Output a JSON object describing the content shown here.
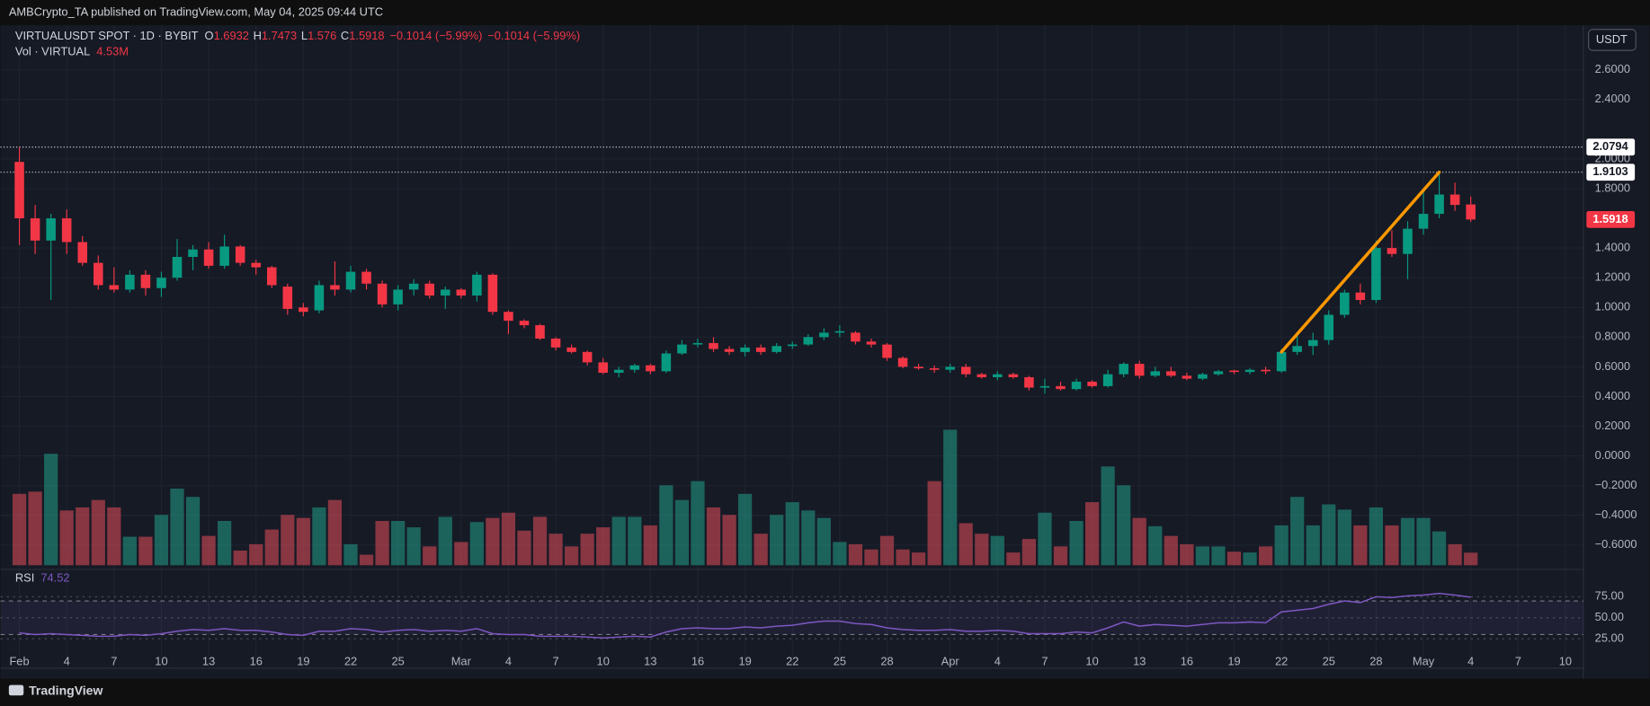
{
  "header": {
    "published": "AMBCrypto_TA published on TradingView.com, May 04, 2025 09:44 UTC",
    "logo": "TradingView"
  },
  "chart_data": {
    "type": "candlestick",
    "symbol": "VIRTUALUSDT SPOT · 1D · BYBIT",
    "currency": "USDT",
    "ohlc_keys": [
      "O",
      "H",
      "L",
      "C"
    ],
    "change": "−0.1014 (−5.99%)",
    "volume_title": "Vol · VIRTUAL",
    "volume_label": "4.53M",
    "up_color": "#089981",
    "down_color": "#f23645",
    "volume_up_color": "rgba(34,171,148,0.5)",
    "volume_down_color": "rgba(247,82,95,0.5)",
    "categories": [
      "2025-02-01",
      "2025-02-02",
      "2025-02-03",
      "2025-02-04",
      "2025-02-05",
      "2025-02-06",
      "2025-02-07",
      "2025-02-08",
      "2025-02-09",
      "2025-02-10",
      "2025-02-11",
      "2025-02-12",
      "2025-02-13",
      "2025-02-14",
      "2025-02-15",
      "2025-02-16",
      "2025-02-17",
      "2025-02-18",
      "2025-02-19",
      "2025-02-20",
      "2025-02-21",
      "2025-02-22",
      "2025-02-23",
      "2025-02-24",
      "2025-02-25",
      "2025-02-26",
      "2025-02-27",
      "2025-02-28",
      "2025-03-01",
      "2025-03-02",
      "2025-03-03",
      "2025-03-04",
      "2025-03-05",
      "2025-03-06",
      "2025-03-07",
      "2025-03-08",
      "2025-03-09",
      "2025-03-10",
      "2025-03-11",
      "2025-03-12",
      "2025-03-13",
      "2025-03-14",
      "2025-03-15",
      "2025-03-16",
      "2025-03-17",
      "2025-03-18",
      "2025-03-19",
      "2025-03-20",
      "2025-03-21",
      "2025-03-22",
      "2025-03-23",
      "2025-03-24",
      "2025-03-25",
      "2025-03-26",
      "2025-03-27",
      "2025-03-28",
      "2025-03-29",
      "2025-03-30",
      "2025-03-31",
      "2025-04-01",
      "2025-04-02",
      "2025-04-03",
      "2025-04-04",
      "2025-04-05",
      "2025-04-06",
      "2025-04-07",
      "2025-04-08",
      "2025-04-09",
      "2025-04-10",
      "2025-04-11",
      "2025-04-12",
      "2025-04-13",
      "2025-04-14",
      "2025-04-15",
      "2025-04-16",
      "2025-04-17",
      "2025-04-18",
      "2025-04-19",
      "2025-04-20",
      "2025-04-21",
      "2025-04-22",
      "2025-04-23",
      "2025-04-24",
      "2025-04-25",
      "2025-04-26",
      "2025-04-27",
      "2025-04-28",
      "2025-04-29",
      "2025-04-30",
      "2025-05-01",
      "2025-05-02",
      "2025-05-03",
      "2025-05-04"
    ],
    "open": [
      1.98,
      1.6,
      1.45,
      1.6,
      1.44,
      1.3,
      1.15,
      1.12,
      1.22,
      1.13,
      1.2,
      1.34,
      1.39,
      1.28,
      1.41,
      1.3,
      1.27,
      1.14,
      1.0,
      0.98,
      1.15,
      1.12,
      1.24,
      1.16,
      1.02,
      1.12,
      1.16,
      1.08,
      1.12,
      1.08,
      1.22,
      0.97,
      0.91,
      0.88,
      0.79,
      0.73,
      0.7,
      0.63,
      0.56,
      0.58,
      0.61,
      0.57,
      0.69,
      0.75,
      0.76,
      0.72,
      0.7,
      0.73,
      0.7,
      0.74,
      0.75,
      0.8,
      0.83,
      0.83,
      0.77,
      0.75,
      0.66,
      0.6,
      0.59,
      0.58,
      0.6,
      0.55,
      0.53,
      0.55,
      0.53,
      0.46,
      0.47,
      0.45,
      0.5,
      0.47,
      0.55,
      0.62,
      0.54,
      0.57,
      0.54,
      0.52,
      0.55,
      0.575,
      0.565,
      0.58,
      0.57,
      0.7,
      0.74,
      0.78,
      0.95,
      1.1,
      1.05,
      1.4,
      1.36,
      1.53,
      1.63,
      1.76,
      1.6932
    ],
    "high": [
      2.08,
      1.69,
      1.63,
      1.66,
      1.48,
      1.35,
      1.27,
      1.25,
      1.25,
      1.24,
      1.46,
      1.42,
      1.44,
      1.49,
      1.42,
      1.32,
      1.28,
      1.16,
      1.03,
      1.18,
      1.31,
      1.28,
      1.26,
      1.18,
      1.15,
      1.19,
      1.18,
      1.14,
      1.13,
      1.24,
      1.23,
      0.98,
      0.92,
      0.89,
      0.8,
      0.75,
      0.71,
      0.66,
      0.6,
      0.62,
      0.62,
      0.71,
      0.78,
      0.79,
      0.8,
      0.74,
      0.75,
      0.75,
      0.76,
      0.77,
      0.82,
      0.86,
      0.88,
      0.84,
      0.79,
      0.76,
      0.67,
      0.62,
      0.61,
      0.62,
      0.62,
      0.56,
      0.57,
      0.56,
      0.54,
      0.52,
      0.5,
      0.52,
      0.51,
      0.58,
      0.63,
      0.64,
      0.6,
      0.6,
      0.56,
      0.56,
      0.58,
      0.58,
      0.59,
      0.6,
      0.72,
      0.82,
      0.83,
      0.98,
      1.12,
      1.16,
      1.45,
      1.52,
      1.58,
      1.79,
      1.91,
      1.84,
      1.7473
    ],
    "low": [
      1.42,
      1.36,
      1.05,
      1.36,
      1.28,
      1.12,
      1.1,
      1.1,
      1.08,
      1.07,
      1.18,
      1.25,
      1.26,
      1.26,
      1.28,
      1.22,
      1.13,
      0.95,
      0.94,
      0.96,
      1.08,
      1.1,
      1.12,
      1.0,
      0.98,
      1.08,
      1.06,
      0.99,
      1.06,
      1.04,
      0.95,
      0.82,
      0.86,
      0.78,
      0.71,
      0.69,
      0.61,
      0.55,
      0.53,
      0.56,
      0.55,
      0.56,
      0.68,
      0.73,
      0.7,
      0.68,
      0.67,
      0.68,
      0.69,
      0.72,
      0.74,
      0.78,
      0.8,
      0.75,
      0.73,
      0.64,
      0.59,
      0.58,
      0.56,
      0.56,
      0.53,
      0.52,
      0.51,
      0.52,
      0.44,
      0.42,
      0.44,
      0.44,
      0.46,
      0.46,
      0.53,
      0.52,
      0.53,
      0.53,
      0.51,
      0.51,
      0.54,
      0.55,
      0.55,
      0.55,
      0.56,
      0.68,
      0.68,
      0.75,
      0.93,
      1.02,
      1.03,
      1.34,
      1.19,
      1.49,
      1.6,
      1.65,
      1.576
    ],
    "close": [
      1.6,
      1.45,
      1.6,
      1.44,
      1.3,
      1.15,
      1.12,
      1.22,
      1.13,
      1.2,
      1.34,
      1.39,
      1.28,
      1.41,
      1.3,
      1.27,
      1.15,
      0.99,
      0.97,
      1.15,
      1.12,
      1.24,
      1.16,
      1.02,
      1.12,
      1.16,
      1.08,
      1.12,
      1.08,
      1.22,
      0.97,
      0.91,
      0.88,
      0.79,
      0.73,
      0.7,
      0.63,
      0.56,
      0.58,
      0.61,
      0.57,
      0.69,
      0.75,
      0.76,
      0.72,
      0.7,
      0.73,
      0.7,
      0.74,
      0.75,
      0.8,
      0.83,
      0.84,
      0.77,
      0.75,
      0.66,
      0.6,
      0.59,
      0.58,
      0.6,
      0.55,
      0.53,
      0.55,
      0.53,
      0.46,
      0.47,
      0.45,
      0.5,
      0.47,
      0.55,
      0.62,
      0.54,
      0.57,
      0.54,
      0.52,
      0.55,
      0.57,
      0.565,
      0.58,
      0.57,
      0.7,
      0.74,
      0.78,
      0.95,
      1.1,
      1.05,
      1.4,
      1.36,
      1.53,
      1.63,
      1.76,
      1.69,
      1.5918
    ],
    "volume": [
      25.8,
      26.6,
      40.3,
      19.8,
      20.9,
      23.6,
      20.9,
      10.3,
      10.3,
      18.2,
      27.7,
      24.7,
      10.6,
      16.0,
      5.3,
      7.6,
      12.9,
      18.2,
      17.1,
      20.9,
      23.6,
      7.6,
      3.8,
      16.0,
      16.0,
      13.7,
      6.8,
      17.5,
      8.4,
      15.6,
      17.1,
      19.0,
      12.5,
      17.5,
      11.4,
      6.8,
      11.4,
      13.7,
      17.5,
      17.5,
      14.4,
      28.9,
      23.6,
      30.4,
      20.9,
      18.2,
      25.8,
      11.4,
      18.2,
      22.8,
      19.8,
      17.1,
      8.4,
      7.6,
      5.7,
      10.6,
      5.7,
      4.6,
      30.4,
      49.0,
      15.2,
      11.4,
      10.6,
      4.6,
      9.5,
      19.0,
      6.8,
      16.0,
      22.8,
      35.7,
      28.9,
      17.1,
      14.1,
      10.6,
      7.6,
      6.8,
      6.8,
      4.9,
      4.6,
      6.8,
      14.4,
      24.7,
      14.4,
      22.0,
      20.1,
      14.4,
      20.9,
      14.4,
      17.1,
      17.1,
      12.2,
      7.6,
      4.53
    ],
    "ylim": [
      -0.75,
      2.9
    ],
    "yticks": [
      {
        "value": 2.6,
        "label": "2.6000"
      },
      {
        "value": 2.4,
        "label": "2.4000"
      },
      {
        "value": 2.0,
        "label": "2.0000"
      },
      {
        "value": 1.8,
        "label": "1.8000"
      },
      {
        "value": 1.4,
        "label": "1.4000"
      },
      {
        "value": 1.2,
        "label": "1.2000"
      },
      {
        "value": 1.0,
        "label": "1.0000"
      },
      {
        "value": 0.8,
        "label": "0.8000"
      },
      {
        "value": 0.6,
        "label": "0.6000"
      },
      {
        "value": 0.4,
        "label": "0.4000"
      },
      {
        "value": 0.2,
        "label": "0.2000"
      },
      {
        "value": 0,
        "label": "0.0000"
      },
      {
        "value": -0.2,
        "label": "−0.2000"
      },
      {
        "value": -0.4,
        "label": "−0.4000"
      },
      {
        "value": -0.6,
        "label": "−0.6000"
      }
    ],
    "xlim": [
      "2025-01-31",
      "2025-05-11"
    ],
    "xticks": [
      {
        "value": "2025-02-01",
        "label": "Feb"
      },
      {
        "value": "2025-02-04",
        "label": "4"
      },
      {
        "value": "2025-02-07",
        "label": "7"
      },
      {
        "value": "2025-02-10",
        "label": "10"
      },
      {
        "value": "2025-02-13",
        "label": "13"
      },
      {
        "value": "2025-02-16",
        "label": "16"
      },
      {
        "value": "2025-02-19",
        "label": "19"
      },
      {
        "value": "2025-02-22",
        "label": "22"
      },
      {
        "value": "2025-02-25",
        "label": "25"
      },
      {
        "value": "2025-03-01",
        "label": "Mar"
      },
      {
        "value": "2025-03-04",
        "label": "4"
      },
      {
        "value": "2025-03-07",
        "label": "7"
      },
      {
        "value": "2025-03-10",
        "label": "10"
      },
      {
        "value": "2025-03-13",
        "label": "13"
      },
      {
        "value": "2025-03-16",
        "label": "16"
      },
      {
        "value": "2025-03-19",
        "label": "19"
      },
      {
        "value": "2025-03-22",
        "label": "22"
      },
      {
        "value": "2025-03-25",
        "label": "25"
      },
      {
        "value": "2025-03-28",
        "label": "28"
      },
      {
        "value": "2025-04-01",
        "label": "Apr"
      },
      {
        "value": "2025-04-04",
        "label": "4"
      },
      {
        "value": "2025-04-07",
        "label": "7"
      },
      {
        "value": "2025-04-10",
        "label": "10"
      },
      {
        "value": "2025-04-13",
        "label": "13"
      },
      {
        "value": "2025-04-16",
        "label": "16"
      },
      {
        "value": "2025-04-19",
        "label": "19"
      },
      {
        "value": "2025-04-22",
        "label": "22"
      },
      {
        "value": "2025-04-25",
        "label": "25"
      },
      {
        "value": "2025-04-28",
        "label": "28"
      },
      {
        "value": "2025-05-01",
        "label": "May"
      },
      {
        "value": "2025-05-04",
        "label": "4"
      },
      {
        "value": "2025-05-07",
        "label": "7"
      },
      {
        "value": "2025-05-10",
        "label": "10"
      }
    ],
    "grid": true,
    "hlines": [
      2.0794,
      1.9103
    ],
    "trendline": {
      "color": "#ff9800",
      "from": [
        "2025-04-22",
        0.7
      ],
      "to": [
        "2025-05-02",
        1.91
      ]
    },
    "rsi": {
      "name": "RSI",
      "color": "#7e57c2",
      "ylim": [
        0,
        100
      ],
      "bands": [
        30,
        70
      ],
      "yticks": [
        {
          "value": 75,
          "label": "75.00"
        },
        {
          "value": 50,
          "label": "50.00"
        },
        {
          "value": 25,
          "label": "25.00"
        }
      ],
      "values": [
        32,
        30,
        31,
        30,
        29,
        28,
        28,
        30,
        29,
        31,
        34,
        36,
        35,
        37,
        35,
        35,
        33,
        30,
        29,
        34,
        34,
        37,
        36,
        33,
        35,
        36,
        34,
        35,
        34,
        37,
        31,
        30,
        30,
        28,
        28,
        28,
        27,
        26,
        27,
        28,
        27,
        33,
        37,
        38,
        37,
        37,
        39,
        38,
        40,
        41,
        44,
        46,
        46,
        43,
        42,
        38,
        36,
        35,
        35,
        36,
        34,
        34,
        35,
        34,
        31,
        31,
        31,
        33,
        32,
        38,
        45,
        40,
        42,
        41,
        40,
        42,
        44,
        44,
        45,
        44,
        57,
        59,
        61,
        66,
        70,
        68,
        75,
        74,
        76,
        77,
        79,
        77,
        74.52
      ]
    }
  }
}
